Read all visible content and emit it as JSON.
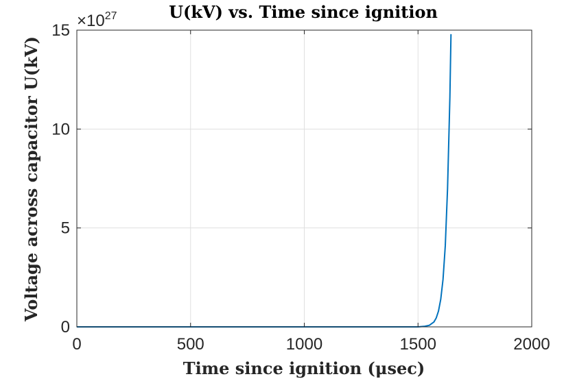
{
  "chart_data": {
    "type": "line",
    "title": "U(kV) vs. Time since ignition",
    "xlabel": "Time since ignition (μsec)",
    "ylabel": "Voltage across capacitor U(kV)",
    "y_exponent_label": "×10",
    "y_exponent_power": "27",
    "xlim": [
      0,
      2000
    ],
    "ylim": [
      0,
      15
    ],
    "y_scale_factor": "1e27",
    "grid": true,
    "x_ticks": [
      "0",
      "500",
      "1000",
      "1500",
      "2000"
    ],
    "y_ticks": [
      "0",
      "5",
      "10",
      "15"
    ],
    "series": [
      {
        "color": "#0072bd",
        "x": [
          0,
          500,
          1000,
          1400,
          1500,
          1530,
          1550,
          1570,
          1580,
          1590,
          1600,
          1610,
          1620,
          1630,
          1640,
          1645
        ],
        "y": [
          0,
          0,
          0,
          0,
          0.0,
          0.03,
          0.08,
          0.25,
          0.45,
          0.8,
          1.4,
          2.4,
          4.1,
          7.0,
          11.6,
          14.8
        ]
      }
    ]
  }
}
